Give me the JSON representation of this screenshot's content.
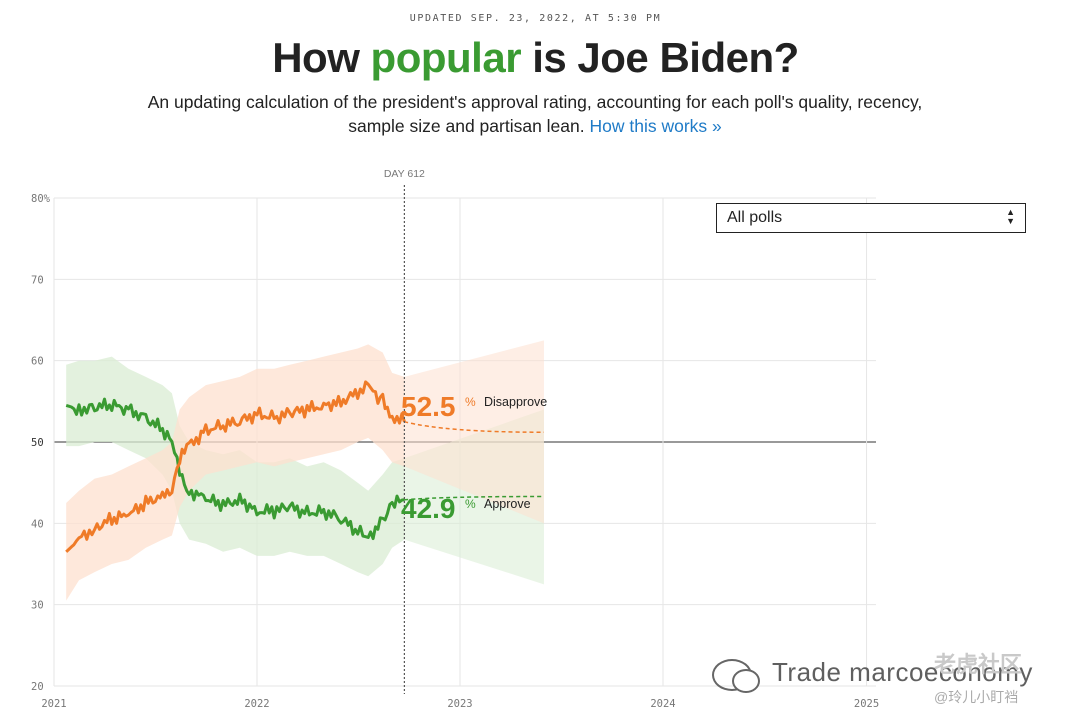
{
  "header": {
    "updated": "UPDATED SEP. 23, 2022, AT 5:30 PM",
    "title_pre": "How ",
    "title_highlight": "popular",
    "title_post": " is Joe Biden?",
    "subtitle": "An updating calculation of the president's approval rating, accounting for each poll's quality, recency, sample size and partisan lean.",
    "subtitle_link": "How this works »"
  },
  "filter": {
    "selected": "All polls"
  },
  "colors": {
    "approve": "#3a9b32",
    "disapprove": "#ef7b28",
    "approve_band": "#d9ecd3",
    "disapprove_band": "#fde0cf",
    "grid": "#e6e6e6"
  },
  "chart_data": {
    "type": "line",
    "title": "How popular is Joe Biden?",
    "ylim": [
      20,
      80
    ],
    "yticks": [
      "80%",
      "70",
      "60",
      "50",
      "40",
      "30",
      "20"
    ],
    "xticks": [
      "2021",
      "2022",
      "2023",
      "2024",
      "2025"
    ],
    "reference_line": 50,
    "marker_label": "DAY 612",
    "marker_date": "2022-09-23",
    "x": [
      "2021-01-23",
      "2021-02-15",
      "2021-03-15",
      "2021-04-15",
      "2021-05-15",
      "2021-06-15",
      "2021-07-15",
      "2021-08-01",
      "2021-08-15",
      "2021-09-01",
      "2021-10-01",
      "2021-11-01",
      "2021-12-01",
      "2022-01-01",
      "2022-02-01",
      "2022-03-01",
      "2022-04-01",
      "2022-05-01",
      "2022-06-01",
      "2022-07-01",
      "2022-07-20",
      "2022-08-15",
      "2022-09-01",
      "2022-09-23"
    ],
    "series": [
      {
        "name": "Approve",
        "current_label": "42.9",
        "values": [
          54.5,
          54,
          54.3,
          54.5,
          54,
          53,
          51.5,
          50,
          46,
          44,
          43,
          42.2,
          43,
          41.5,
          41.5,
          42,
          41.3,
          41.5,
          40.5,
          39,
          38.2,
          40.5,
          42.3,
          42.9
        ],
        "band_lower": [
          49.5,
          49.5,
          50,
          50,
          49,
          48,
          46,
          44,
          40,
          38,
          37.5,
          36.5,
          37,
          36,
          36,
          36.5,
          36,
          36,
          35,
          34,
          33.5,
          35,
          37,
          38
        ],
        "band_upper": [
          59.5,
          60,
          60,
          60.5,
          59,
          58,
          57,
          56,
          52,
          50,
          49,
          48.5,
          49,
          47.5,
          47.5,
          48,
          47,
          47.5,
          46.5,
          45,
          44,
          46,
          47.5,
          48
        ]
      },
      {
        "name": "Disapprove",
        "current_label": "52.5",
        "values": [
          36.5,
          38,
          39.5,
          40.5,
          41,
          42.5,
          43.5,
          44.5,
          48,
          49.5,
          51.5,
          52,
          52.5,
          53.5,
          53,
          53.5,
          54,
          54.5,
          55,
          56,
          56.7,
          55,
          53.2,
          52.5
        ],
        "band_lower": [
          30.5,
          33,
          34,
          35,
          35.5,
          37,
          38,
          38.5,
          42,
          44,
          46,
          46.5,
          47,
          47.5,
          47,
          47.5,
          48,
          48.5,
          49,
          50,
          50.5,
          49,
          47.5,
          47
        ],
        "band_upper": [
          42.5,
          44,
          45.5,
          46,
          47,
          48,
          49,
          50,
          54,
          55.5,
          57,
          57.5,
          58,
          59,
          59,
          59.5,
          60,
          60.5,
          61,
          61.5,
          62,
          61,
          58.5,
          58
        ]
      }
    ],
    "projection": {
      "end_date": "2023-06-01",
      "approve_end": 43.3,
      "disapprove_end": 51.2,
      "approve_band_end": [
        32.5,
        54
      ],
      "disapprove_band_end": [
        40,
        62.5
      ]
    }
  },
  "watermark": {
    "text1": "Trade marcoeconomy",
    "text2": "老虎社区",
    "text3": "@玲儿小盯裆"
  }
}
